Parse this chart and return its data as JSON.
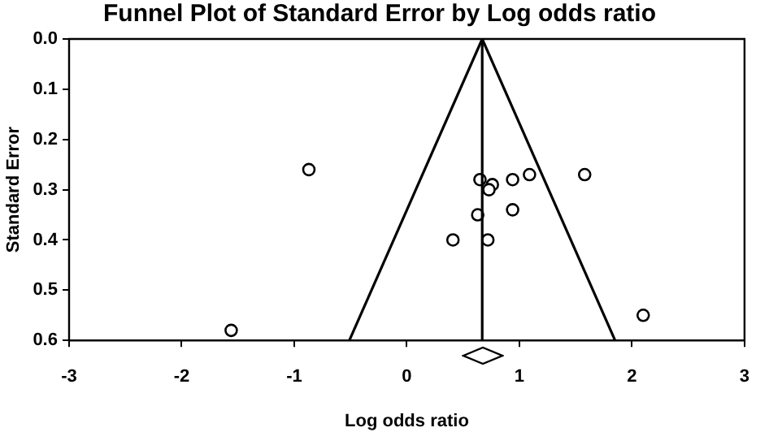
{
  "chart_data": {
    "type": "scatter",
    "title": "Funnel Plot of Standard Error by Log odds ratio",
    "xlabel": "Log odds ratio",
    "ylabel": "Standard Error",
    "xlim": [
      -3,
      3
    ],
    "xticks": [
      -3,
      -2,
      -1,
      0,
      1,
      2,
      3
    ],
    "ylim": [
      0.6,
      0
    ],
    "yticks": [
      {
        "value": 0,
        "label": "0.0"
      },
      0.1,
      0.2,
      0.3,
      0.4,
      0.5,
      0.6
    ],
    "grid": false,
    "legend": false,
    "marker": "circle",
    "series": [
      {
        "color": "#000000",
        "x": [
          -0.87,
          -1.56,
          0.65,
          0.76,
          0.73,
          0.94,
          1.09,
          1.58,
          0.94,
          0.63,
          0.41,
          0.72,
          2.1
        ],
        "values": [
          0.26,
          0.58,
          0.28,
          0.29,
          0.3,
          0.28,
          0.27,
          0.27,
          0.34,
          0.35,
          0.4,
          0.4,
          0.55
        ]
      },
      {
        "type": "line",
        "color": "#000000",
        "marker": "none",
        "x": [
          -0.51,
          0.67,
          1.85
        ],
        "values": [
          0.6,
          0,
          0.6
        ]
      }
    ],
    "ref_lines": [
      {
        "axis": "x",
        "value": 0.67,
        "color": "#000000"
      }
    ]
  }
}
